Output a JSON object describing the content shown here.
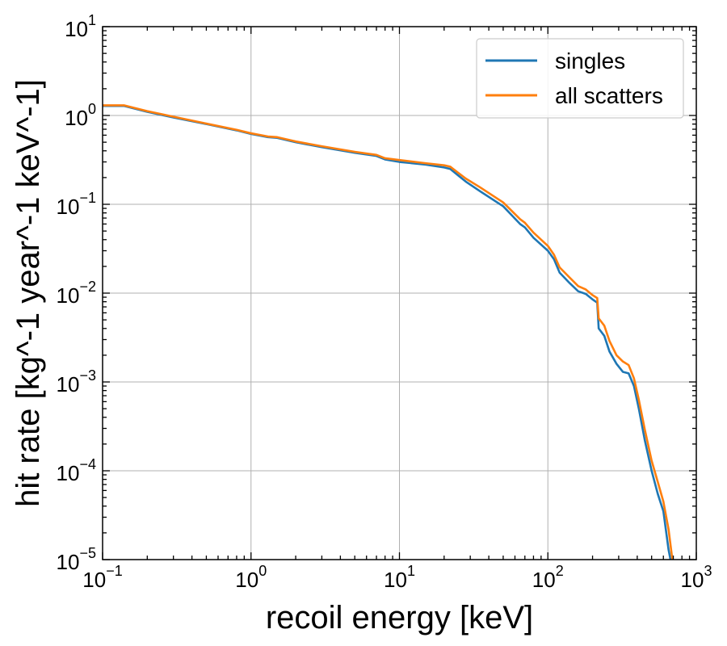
{
  "chart_data": {
    "type": "line",
    "xlabel": "recoil energy [keV]",
    "ylabel": "hit rate [kg^-1 year^-1 keV^-1]",
    "xscale": "log",
    "yscale": "log",
    "xlim": [
      0.1,
      1000
    ],
    "ylim": [
      1e-05,
      10
    ],
    "grid": true,
    "legend_position": "top-right",
    "x_ticks": [
      {
        "base": "10",
        "exp": "−1",
        "value": 0.1
      },
      {
        "base": "10",
        "exp": "0",
        "value": 1
      },
      {
        "base": "10",
        "exp": "1",
        "value": 10
      },
      {
        "base": "10",
        "exp": "2",
        "value": 100
      },
      {
        "base": "10",
        "exp": "3",
        "value": 1000
      }
    ],
    "y_ticks": [
      {
        "base": "10",
        "exp": "−5",
        "value": 1e-05
      },
      {
        "base": "10",
        "exp": "−4",
        "value": 0.0001
      },
      {
        "base": "10",
        "exp": "−3",
        "value": 0.001
      },
      {
        "base": "10",
        "exp": "−2",
        "value": 0.01
      },
      {
        "base": "10",
        "exp": "−1",
        "value": 0.1
      },
      {
        "base": "10",
        "exp": "0",
        "value": 1
      },
      {
        "base": "10",
        "exp": "1",
        "value": 10
      }
    ],
    "series": [
      {
        "name": "singles",
        "color": "#1f77b4",
        "points": [
          [
            0.1,
            1.28
          ],
          [
            0.14,
            1.28
          ],
          [
            0.2,
            1.1
          ],
          [
            0.3,
            0.95
          ],
          [
            0.5,
            0.8
          ],
          [
            0.8,
            0.68
          ],
          [
            1.0,
            0.62
          ],
          [
            1.3,
            0.57
          ],
          [
            1.5,
            0.56
          ],
          [
            2.0,
            0.5
          ],
          [
            3.0,
            0.44
          ],
          [
            5.0,
            0.38
          ],
          [
            7.0,
            0.35
          ],
          [
            8.0,
            0.32
          ],
          [
            10.0,
            0.3
          ],
          [
            15.0,
            0.28
          ],
          [
            20.0,
            0.26
          ],
          [
            22.0,
            0.25
          ],
          [
            25.0,
            0.21
          ],
          [
            28.0,
            0.18
          ],
          [
            35.0,
            0.14
          ],
          [
            50.0,
            0.095
          ],
          [
            65.0,
            0.06
          ],
          [
            70.0,
            0.055
          ],
          [
            80.0,
            0.042
          ],
          [
            100.0,
            0.03
          ],
          [
            110.0,
            0.024
          ],
          [
            120.0,
            0.017
          ],
          [
            140.0,
            0.013
          ],
          [
            160.0,
            0.0105
          ],
          [
            180.0,
            0.0098
          ],
          [
            200.0,
            0.0085
          ],
          [
            215.0,
            0.0078
          ],
          [
            220.0,
            0.004
          ],
          [
            240.0,
            0.0033
          ],
          [
            260.0,
            0.0022
          ],
          [
            290.0,
            0.0016
          ],
          [
            320.0,
            0.0013
          ],
          [
            350.0,
            0.00125
          ],
          [
            380.0,
            0.0009
          ],
          [
            410.0,
            0.0005
          ],
          [
            450.0,
            0.00022
          ],
          [
            500.0,
            0.0001
          ],
          [
            550.0,
            5.5e-05
          ],
          [
            600.0,
            3.5e-05
          ],
          [
            650.0,
            1.3e-05
          ],
          [
            670.0,
            1e-05
          ]
        ]
      },
      {
        "name": "all scatters",
        "color": "#ff7f0e",
        "points": [
          [
            0.1,
            1.3
          ],
          [
            0.14,
            1.3
          ],
          [
            0.2,
            1.12
          ],
          [
            0.3,
            0.97
          ],
          [
            0.5,
            0.81
          ],
          [
            0.8,
            0.69
          ],
          [
            1.0,
            0.63
          ],
          [
            1.3,
            0.58
          ],
          [
            1.5,
            0.57
          ],
          [
            2.0,
            0.51
          ],
          [
            3.0,
            0.45
          ],
          [
            5.0,
            0.39
          ],
          [
            7.0,
            0.36
          ],
          [
            8.0,
            0.33
          ],
          [
            10.0,
            0.315
          ],
          [
            15.0,
            0.29
          ],
          [
            20.0,
            0.275
          ],
          [
            22.0,
            0.265
          ],
          [
            25.0,
            0.225
          ],
          [
            28.0,
            0.195
          ],
          [
            35.0,
            0.155
          ],
          [
            50.0,
            0.105
          ],
          [
            65.0,
            0.068
          ],
          [
            70.0,
            0.062
          ],
          [
            80.0,
            0.048
          ],
          [
            100.0,
            0.034
          ],
          [
            110.0,
            0.027
          ],
          [
            120.0,
            0.0195
          ],
          [
            140.0,
            0.015
          ],
          [
            160.0,
            0.012
          ],
          [
            180.0,
            0.011
          ],
          [
            200.0,
            0.0095
          ],
          [
            215.0,
            0.0088
          ],
          [
            220.0,
            0.0052
          ],
          [
            240.0,
            0.0043
          ],
          [
            260.0,
            0.0029
          ],
          [
            290.0,
            0.002
          ],
          [
            320.0,
            0.0017
          ],
          [
            350.0,
            0.00155
          ],
          [
            380.0,
            0.0011
          ],
          [
            410.0,
            0.00063
          ],
          [
            450.0,
            0.00029
          ],
          [
            500.0,
            0.00013
          ],
          [
            550.0,
            7.5e-05
          ],
          [
            600.0,
            4.5e-05
          ],
          [
            650.0,
            2.2e-05
          ],
          [
            690.0,
            1e-05
          ]
        ]
      }
    ]
  }
}
